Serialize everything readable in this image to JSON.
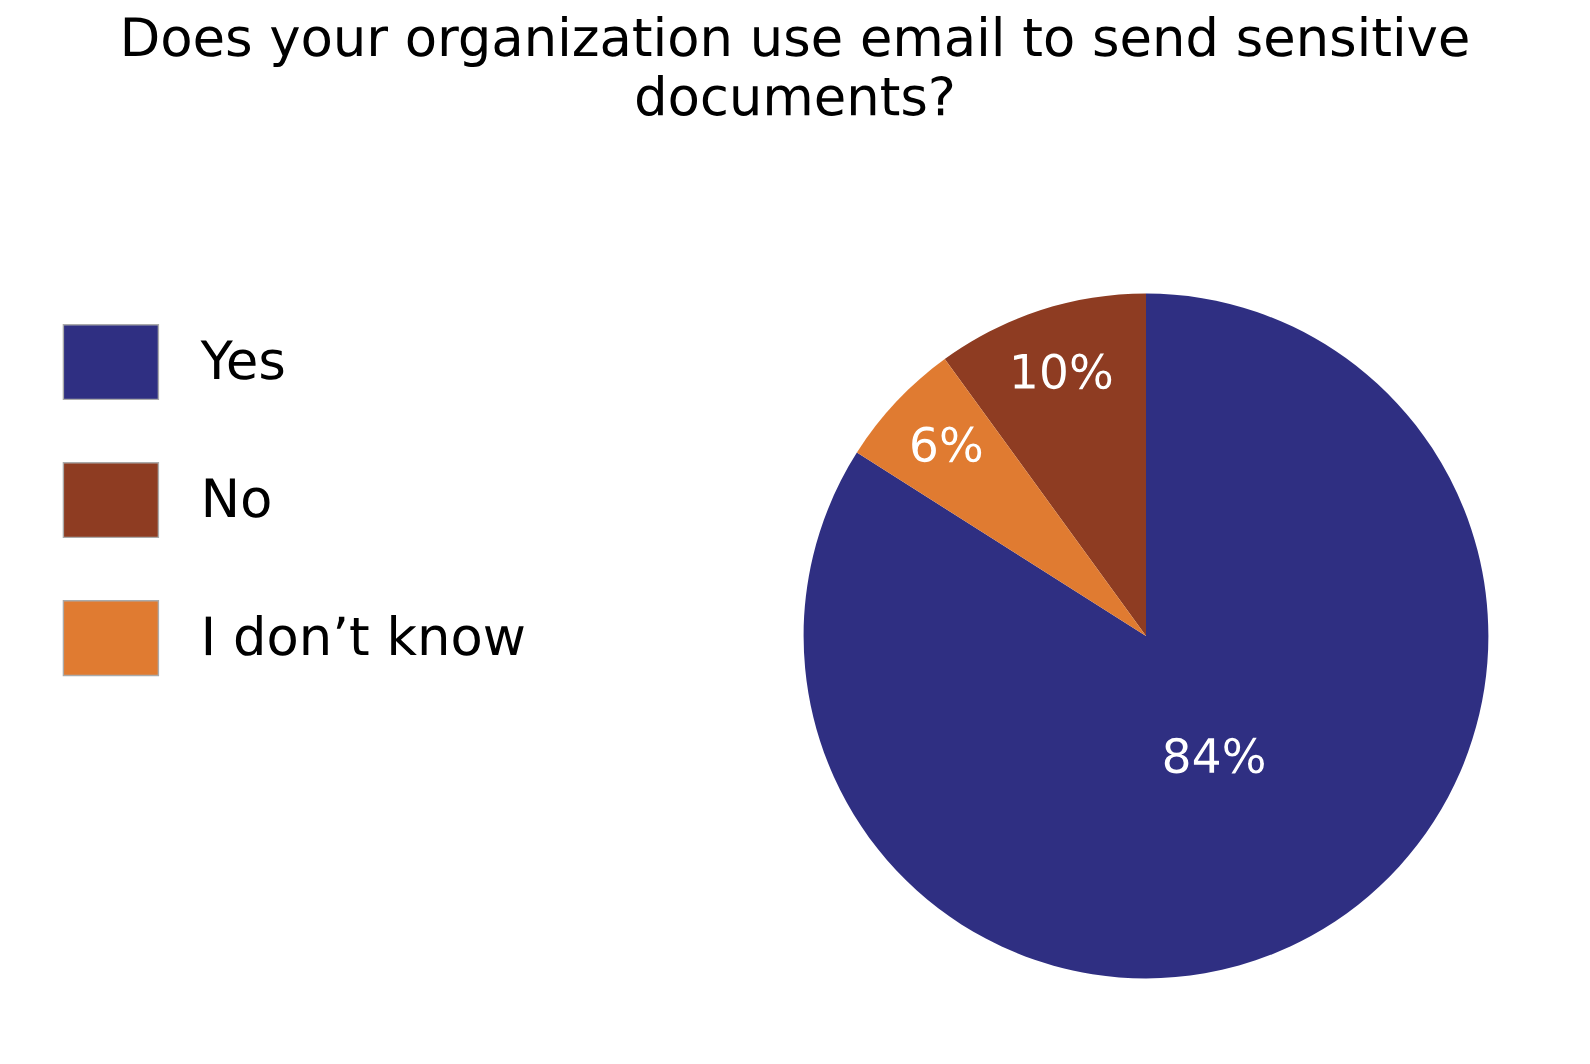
{
  "chart_data": {
    "type": "pie",
    "title": "Does your organization use email to send sensitive documents?",
    "categories": [
      "Yes",
      "No",
      "I don’t know"
    ],
    "values": [
      84,
      10,
      6
    ],
    "colors": [
      "#2f2f82",
      "#8e3c22",
      "#e07b31"
    ],
    "value_labels": [
      "84%",
      "10%",
      "6%"
    ],
    "legend": "left"
  }
}
